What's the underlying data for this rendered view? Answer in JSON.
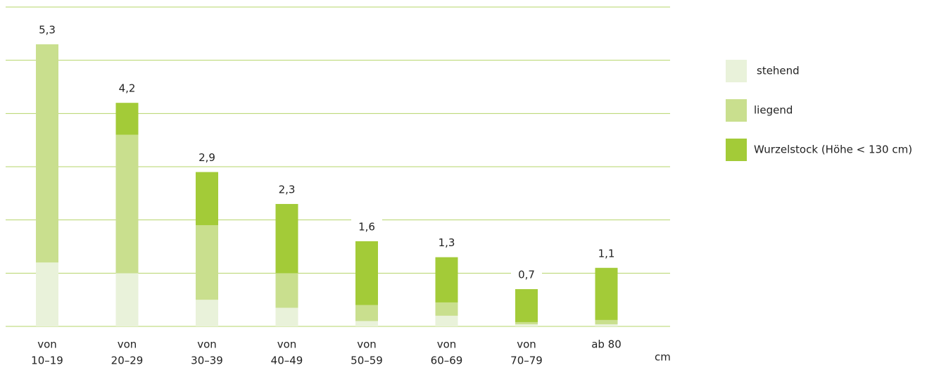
{
  "chart_data": {
    "type": "stacked_bar",
    "categories": [
      [
        "von",
        "10–19"
      ],
      [
        "von",
        "20–29"
      ],
      [
        "von",
        "30–39"
      ],
      [
        "von",
        "40–49"
      ],
      [
        "von",
        "50–59"
      ],
      [
        "von",
        "60–69"
      ],
      [
        "von",
        "70–79"
      ],
      [
        "ab 80"
      ]
    ],
    "series": [
      {
        "name": "stehend",
        "color": "#e9f2da",
        "values": [
          1.2,
          1.0,
          0.5,
          0.35,
          0.1,
          0.2,
          0.04,
          0.04
        ]
      },
      {
        "name": "liegend",
        "color": "#c9df8e",
        "values": [
          4.1,
          2.6,
          1.4,
          0.65,
          0.3,
          0.25,
          0.04,
          0.08
        ]
      },
      {
        "name": "Wurzelstock (Höhe < 130 cm)",
        "color": "#a3cb38",
        "values": [
          0,
          0.6,
          1.0,
          1.3,
          1.2,
          0.85,
          0.62,
          0.98
        ]
      }
    ],
    "totals": [
      5.3,
      4.2,
      2.9,
      2.3,
      1.6,
      1.3,
      0.7,
      1.1
    ],
    "total_labels": [
      "5,3",
      "4,2",
      "2,9",
      "2,3",
      "1,6",
      "1,3",
      "0,7",
      "1,1"
    ],
    "x_label": "cm",
    "ylim": [
      0,
      6
    ],
    "yticks": [
      0,
      1,
      2,
      3,
      4,
      5,
      6
    ],
    "grid": true
  }
}
